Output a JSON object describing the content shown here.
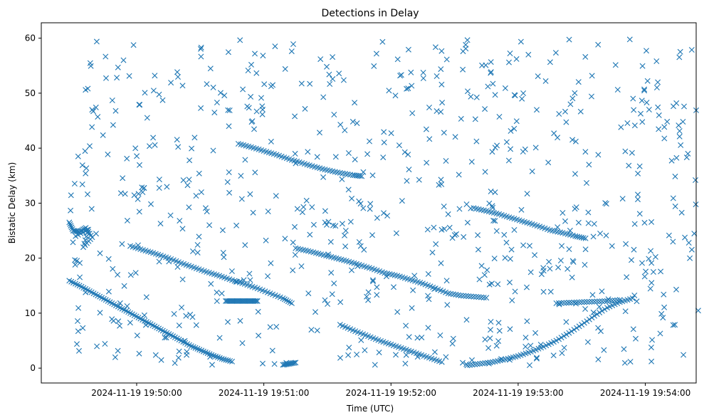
{
  "chart_data": {
    "type": "scatter",
    "title": "Detections in Delay",
    "xlabel": "Time (UTC)",
    "ylabel": "Bistatic Delay (km)",
    "x_ticks": [
      {
        "label": "2024-11-19 19:50:00",
        "value": 3.5
      },
      {
        "label": "2024-11-19 19:51:00",
        "value": 4.5
      },
      {
        "label": "2024-11-19 19:52:00",
        "value": 5.5
      },
      {
        "label": "2024-11-19 19:53:00",
        "value": 6.5
      },
      {
        "label": "2024-11-19 19:54:00",
        "value": 7.5
      }
    ],
    "y_ticks": [
      0,
      10,
      20,
      30,
      40,
      50,
      60
    ],
    "xlim": [
      2.75,
      7.9
    ],
    "ylim": [
      -2.7,
      62.8
    ],
    "grid": false,
    "legend": "none",
    "marker": "x",
    "marker_color": "#1f77b4",
    "series": [
      {
        "values_x": [
          2.97,
          3.05,
          3.13,
          3.21,
          3.29,
          3.37,
          3.45,
          3.53,
          3.61,
          3.69,
          3.77,
          3.85,
          3.93,
          4.01,
          4.09,
          4.17,
          4.25
        ],
        "values_y": [
          15.9,
          15.0,
          14.0,
          13.0,
          12.0,
          11.0,
          10.0,
          9.0,
          8.0,
          7.0,
          6.0,
          5.0,
          4.0,
          3.2,
          2.4,
          1.7,
          1.2
        ]
      },
      {
        "values_x": [
          3.45,
          3.55,
          3.65,
          3.75,
          3.85,
          3.95,
          4.05,
          4.15,
          4.25,
          4.35,
          4.45,
          4.55,
          4.65,
          4.72
        ],
        "values_y": [
          22.2,
          21.5,
          20.8,
          20.0,
          19.1,
          18.3,
          17.5,
          16.8,
          16.0,
          15.3,
          14.5,
          13.6,
          12.7,
          11.8
        ]
      },
      {
        "values_x": [
          4.2,
          4.25,
          4.3,
          4.35,
          4.4,
          4.45
        ],
        "values_y": [
          12.2,
          12.2,
          12.2,
          12.2,
          12.2,
          12.2
        ]
      },
      {
        "values_x": [
          4.3,
          4.4,
          4.5,
          4.6,
          4.7,
          4.8,
          4.9,
          5.0,
          5.1,
          5.2,
          5.27
        ],
        "values_y": [
          40.8,
          40.2,
          39.5,
          38.8,
          38.0,
          37.3,
          36.6,
          36.0,
          35.5,
          35.1,
          34.9
        ]
      },
      {
        "values_x": [
          4.75,
          4.85,
          4.95,
          5.05,
          5.15,
          5.25,
          5.35,
          5.45,
          5.55,
          5.65,
          5.75,
          5.85,
          5.95,
          6.05,
          6.15,
          6.25
        ],
        "values_y": [
          21.8,
          21.3,
          20.7,
          20.1,
          19.5,
          18.8,
          18.1,
          17.3,
          16.8,
          16.1,
          15.4,
          14.5,
          13.6,
          13.2,
          13.0,
          12.8
        ]
      },
      {
        "values_x": [
          5.1,
          5.2,
          5.3,
          5.4,
          5.5,
          5.6,
          5.7,
          5.8,
          5.9
        ],
        "values_y": [
          7.9,
          6.9,
          6.0,
          5.1,
          4.3,
          3.5,
          2.7,
          1.9,
          1.1
        ]
      },
      {
        "values_x": [
          4.65,
          4.7,
          4.75
        ],
        "values_y": [
          0.6,
          0.8,
          1.0
        ]
      },
      {
        "values_x": [
          6.15,
          6.25,
          6.35,
          6.45,
          6.55,
          6.65,
          6.75,
          6.85,
          6.95,
          7.03
        ],
        "values_y": [
          29.1,
          28.6,
          28.0,
          27.3,
          26.6,
          25.9,
          25.1,
          24.6,
          24.0,
          23.6
        ]
      },
      {
        "values_x": [
          6.1,
          6.2,
          6.3,
          6.4,
          6.5,
          6.6,
          6.7,
          6.8,
          6.9,
          7.0,
          7.1,
          7.2,
          7.3,
          7.4
        ],
        "values_y": [
          0.5,
          0.8,
          1.1,
          1.6,
          2.2,
          3.0,
          3.9,
          5.0,
          6.4,
          7.9,
          9.5,
          11.0,
          12.0,
          12.7
        ]
      },
      {
        "values_x": [
          6.8,
          6.9,
          7.0,
          7.1,
          7.2,
          7.3
        ],
        "values_y": [
          11.8,
          11.9,
          12.0,
          12.1,
          12.2,
          12.4
        ]
      },
      {
        "values_x": [
          2.97,
          3.0,
          3.05,
          3.1,
          3.15,
          3.08,
          3.12,
          3.02
        ],
        "values_y": [
          26.5,
          25.0,
          24.8,
          25.5,
          23.8,
          22.0,
          25.2,
          24.0
        ]
      }
    ],
    "noise_count": 720,
    "noise_x_range": [
      2.97,
      7.92
    ],
    "noise_y_range": [
      0.5,
      59.9
    ]
  }
}
